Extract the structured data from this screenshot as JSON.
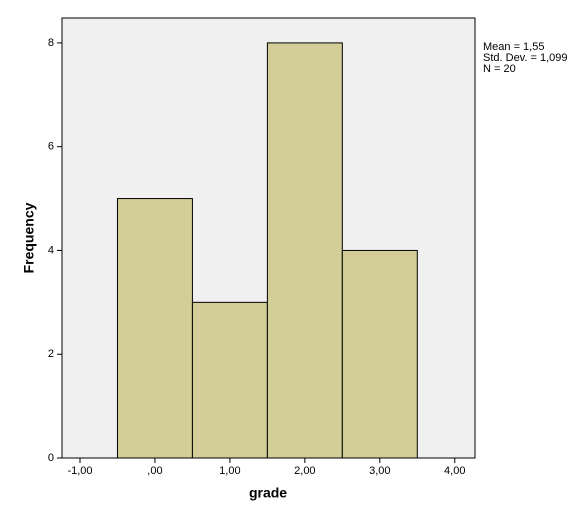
{
  "chart_data": {
    "type": "histogram",
    "x_label": "grade",
    "y_label": "Frequency",
    "bins": [
      -0.5,
      0.5,
      1.5,
      2.5,
      3.5
    ],
    "values": [
      5,
      3,
      8,
      4
    ],
    "color": "#d3ce97",
    "xlim": [
      -1.24,
      4.27
    ],
    "xticks": [
      {
        "value": -1,
        "label": "-1,00"
      },
      {
        "value": 0,
        "label": ",00"
      },
      {
        "value": 1,
        "label": "1,00"
      },
      {
        "value": 2,
        "label": "2,00"
      },
      {
        "value": 3,
        "label": "3,00"
      },
      {
        "value": 4,
        "label": "4,00"
      }
    ],
    "ylim": [
      0,
      8.48
    ],
    "yticks": [
      0,
      2,
      4,
      6,
      8
    ],
    "annotations": [
      "Mean = 1,55",
      "Std. Dev. = 1,099",
      "N = 20"
    ]
  }
}
